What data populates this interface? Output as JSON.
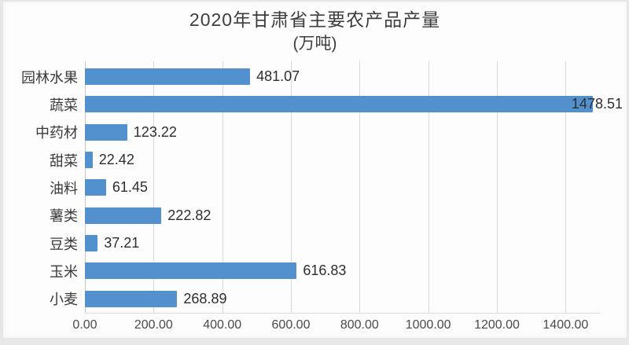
{
  "chart_data": {
    "type": "bar",
    "orientation": "horizontal",
    "title": "2020年甘肃省主要农产品产量",
    "subtitle": "(万吨)",
    "categories": [
      "园林水果",
      "蔬菜",
      "中药材",
      "甜菜",
      "油料",
      "薯类",
      "豆类",
      "玉米",
      "小麦"
    ],
    "values": [
      481.07,
      1478.51,
      123.22,
      22.42,
      61.45,
      222.82,
      37.21,
      616.83,
      268.89
    ],
    "value_labels": [
      "481.07",
      "1478.51",
      "123.22",
      "22.42",
      "61.45",
      "222.82",
      "37.21",
      "616.83",
      "268.89"
    ],
    "xlim": [
      0,
      1500
    ],
    "x_ticks": [
      0,
      200,
      400,
      600,
      800,
      1000,
      1200,
      1400
    ],
    "x_tick_labels": [
      "0.00",
      "200.00",
      "400.00",
      "600.00",
      "800.00",
      "1000.00",
      "1200.00",
      "1400.00"
    ],
    "legend": "none",
    "grid": "vertical-only",
    "colors": {
      "bar": "#5290CE",
      "gridline": "#d9d9d9",
      "axis_line": "#c6c6c6",
      "title_text": "#3d3d3d",
      "category_text": "#3a3a3a",
      "value_text": "#2e2e2e",
      "tick_text": "#4a4a4a",
      "chart_background": "#fdfdfd",
      "page_edge": "#e7e7e7"
    }
  }
}
